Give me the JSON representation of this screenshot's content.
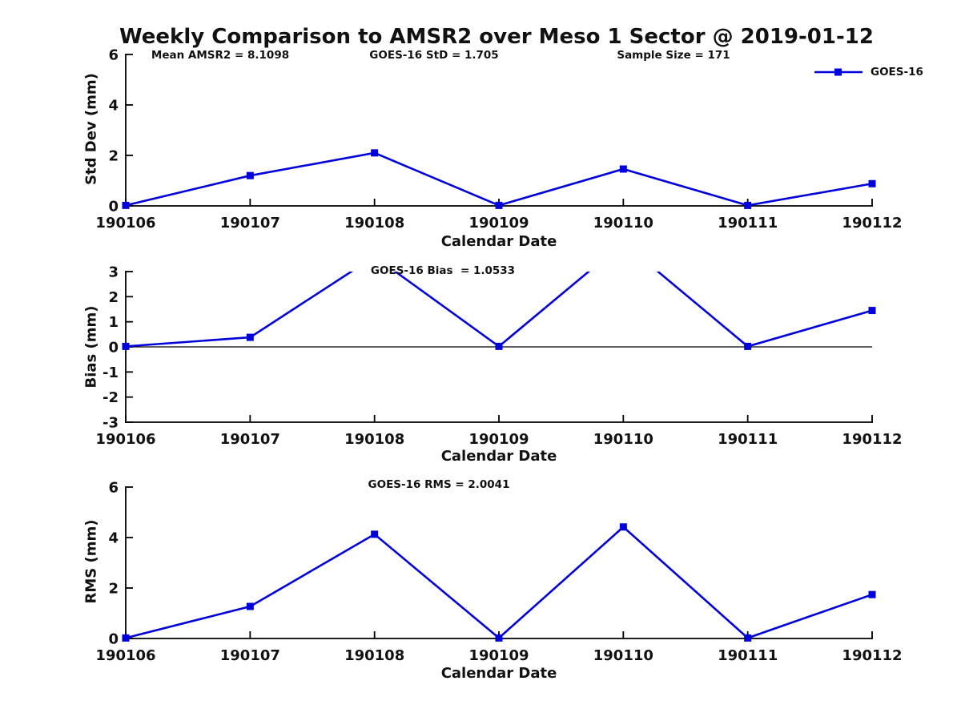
{
  "title": "Weekly Comparison to AMSR2 over Meso 1 Sector @ 2019-01-12",
  "legend": {
    "label": "GOES-16",
    "color": "#0000DD",
    "marker": "square",
    "position": "top-right"
  },
  "colors": {
    "line": "#0000DD",
    "axis": "#000000",
    "text": "#111111",
    "background": "#ffffff"
  },
  "stats": {
    "mean_amsr2": 8.1098,
    "goes16_std": 1.705,
    "sample_size": 171,
    "goes16_bias": 1.0533,
    "goes16_rms": 2.0041
  },
  "chart_data": [
    {
      "type": "line",
      "name": "std-dev",
      "categories": [
        "190106",
        "190107",
        "190108",
        "190109",
        "190110",
        "190111",
        "190112"
      ],
      "series": [
        {
          "name": "GOES-16",
          "values": [
            0.02,
            1.2,
            2.1,
            0.02,
            1.46,
            0.02,
            0.88
          ]
        }
      ],
      "xlabel": "Calendar Date",
      "ylabel": "Std Dev (mm)",
      "ylim": [
        0,
        6
      ],
      "yticks": [
        0,
        2,
        4,
        6
      ],
      "grid": false,
      "marker": "square",
      "zero_line": false,
      "annotations": [
        {
          "text": "Mean AMSR2 = 8.1098"
        },
        {
          "text": "GOES-16 StD = 1.705"
        },
        {
          "text": "Sample Size = 171"
        }
      ]
    },
    {
      "type": "line",
      "name": "bias",
      "categories": [
        "190106",
        "190107",
        "190108",
        "190109",
        "190110",
        "190111",
        "190112"
      ],
      "series": [
        {
          "name": "GOES-16",
          "values": [
            0.02,
            0.38,
            3.6,
            0.02,
            4.15,
            0.02,
            1.45
          ]
        }
      ],
      "xlabel": "Calendar Date",
      "ylabel": "Bias (mm)",
      "ylim": [
        -3,
        3
      ],
      "yticks": [
        -3,
        -2,
        -1,
        0,
        1,
        2,
        3
      ],
      "grid": false,
      "marker": "square",
      "zero_line": true,
      "clip_note": "values above 3 are clipped at the axes top",
      "annotations": [
        {
          "text": "GOES-16 Bias  = 1.0533"
        }
      ]
    },
    {
      "type": "line",
      "name": "rms",
      "categories": [
        "190106",
        "190107",
        "190108",
        "190109",
        "190110",
        "190111",
        "190112"
      ],
      "series": [
        {
          "name": "GOES-16",
          "values": [
            0.02,
            1.27,
            4.13,
            0.02,
            4.42,
            0.02,
            1.74
          ]
        }
      ],
      "xlabel": "Calendar Date",
      "ylabel": "RMS (mm)",
      "ylim": [
        0,
        6
      ],
      "yticks": [
        0,
        2,
        4,
        6
      ],
      "grid": false,
      "marker": "square",
      "zero_line": false,
      "annotations": [
        {
          "text": "GOES-16 RMS = 2.0041"
        }
      ]
    }
  ]
}
